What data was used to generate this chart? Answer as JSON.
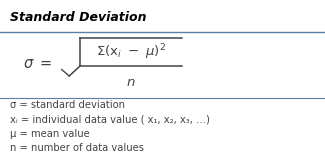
{
  "title": "Standard Deviation",
  "bg_color": "#ffffff",
  "title_bg_color": "#ffffff",
  "divider_color": "#5b7fa6",
  "title_color": "#000000",
  "formula_color": "#444444",
  "legend_color": "#444444",
  "legend_lines": [
    "σ = standard deviation",
    "xᵢ = individual data value ( x₁, x₂, x₃, …)",
    "μ = mean value",
    "n = number of data values"
  ],
  "title_fontsize": 9.0,
  "formula_fontsize": 10.5,
  "legend_fontsize": 7.2,
  "fig_width": 3.25,
  "fig_height": 1.6,
  "dpi": 100
}
